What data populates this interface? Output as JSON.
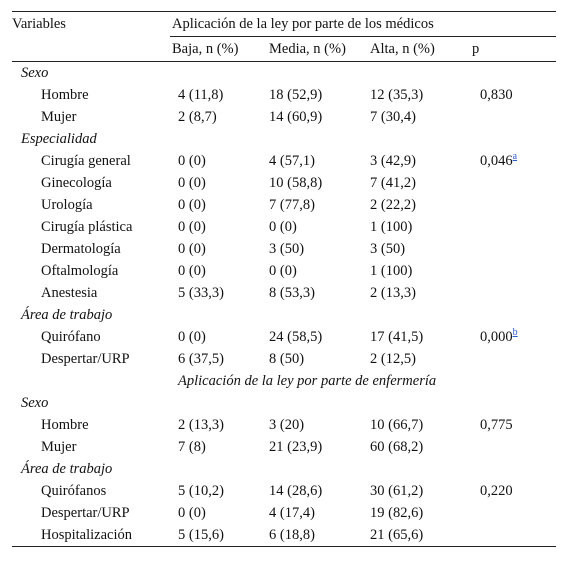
{
  "header": {
    "variables": "Variables",
    "group_medicos": "Aplicación de la ley por parte de los médicos",
    "cols": [
      "Baja, n (%)",
      "Media, n (%)",
      "Alta, n (%)",
      "p"
    ]
  },
  "medicos": {
    "sexo": {
      "title": "Sexo",
      "rows": [
        {
          "label": "Hombre",
          "baja": "4 (11,8)",
          "media": "18 (52,9)",
          "alta": "12 (35,3)",
          "p": "0,830",
          "sup": ""
        },
        {
          "label": "Mujer",
          "baja": "2 (8,7)",
          "media": "14 (60,9)",
          "alta": "7 (30,4)",
          "p": "",
          "sup": ""
        }
      ]
    },
    "especialidad": {
      "title": "Especialidad",
      "rows": [
        {
          "label": "Cirugía general",
          "baja": "0 (0)",
          "media": "4 (57,1)",
          "alta": "3 (42,9)",
          "p": "0,046",
          "sup": "a"
        },
        {
          "label": "Ginecología",
          "baja": "0 (0)",
          "media": "10 (58,8)",
          "alta": "7 (41,2)",
          "p": "",
          "sup": ""
        },
        {
          "label": "Urología",
          "baja": "0 (0)",
          "media": "7 (77,8)",
          "alta": "2 (22,2)",
          "p": "",
          "sup": ""
        },
        {
          "label": "Cirugía plástica",
          "baja": "0 (0)",
          "media": "0 (0)",
          "alta": "1 (100)",
          "p": "",
          "sup": ""
        },
        {
          "label": "Dermatología",
          "baja": "0 (0)",
          "media": "3 (50)",
          "alta": "3 (50)",
          "p": "",
          "sup": ""
        },
        {
          "label": "Oftalmología",
          "baja": "0 (0)",
          "media": "0 (0)",
          "alta": "1 (100)",
          "p": "",
          "sup": ""
        },
        {
          "label": "Anestesia",
          "baja": "5 (33,3)",
          "media": "8 (53,3)",
          "alta": "2 (13,3)",
          "p": "",
          "sup": ""
        }
      ]
    },
    "area": {
      "title": "Área de trabajo",
      "rows": [
        {
          "label": "Quirófano",
          "baja": "0 (0)",
          "media": "24 (58,5)",
          "alta": "17 (41,5)",
          "p": "0,000",
          "sup": "b"
        },
        {
          "label": "Despertar/URP",
          "baja": "6 (37,5)",
          "media": "8 (50)",
          "alta": "2 (12,5)",
          "p": "",
          "sup": ""
        }
      ]
    }
  },
  "group_enfermeria": "Aplicación de la ley por parte de enfermería",
  "enfermeria": {
    "sexo": {
      "title": "Sexo",
      "rows": [
        {
          "label": "Hombre",
          "baja": "2 (13,3)",
          "media": "3 (20)",
          "alta": "10 (66,7)",
          "p": "0,775",
          "sup": ""
        },
        {
          "label": "Mujer",
          "baja": "7 (8)",
          "media": "21 (23,9)",
          "alta": "60 (68,2)",
          "p": "",
          "sup": ""
        }
      ]
    },
    "area": {
      "title": "Área de trabajo",
      "rows": [
        {
          "label": "Quirófanos",
          "baja": "5 (10,2)",
          "media": "14 (28,6)",
          "alta": "30 (61,2)",
          "p": "0,220",
          "sup": ""
        },
        {
          "label": "Despertar/URP",
          "baja": "0 (0)",
          "media": "4 (17,4)",
          "alta": "19 (82,6)",
          "p": "",
          "sup": ""
        },
        {
          "label": "Hospitalización",
          "baja": "5 (15,6)",
          "media": "6 (18,8)",
          "alta": "21 (65,6)",
          "p": "",
          "sup": ""
        }
      ]
    }
  }
}
